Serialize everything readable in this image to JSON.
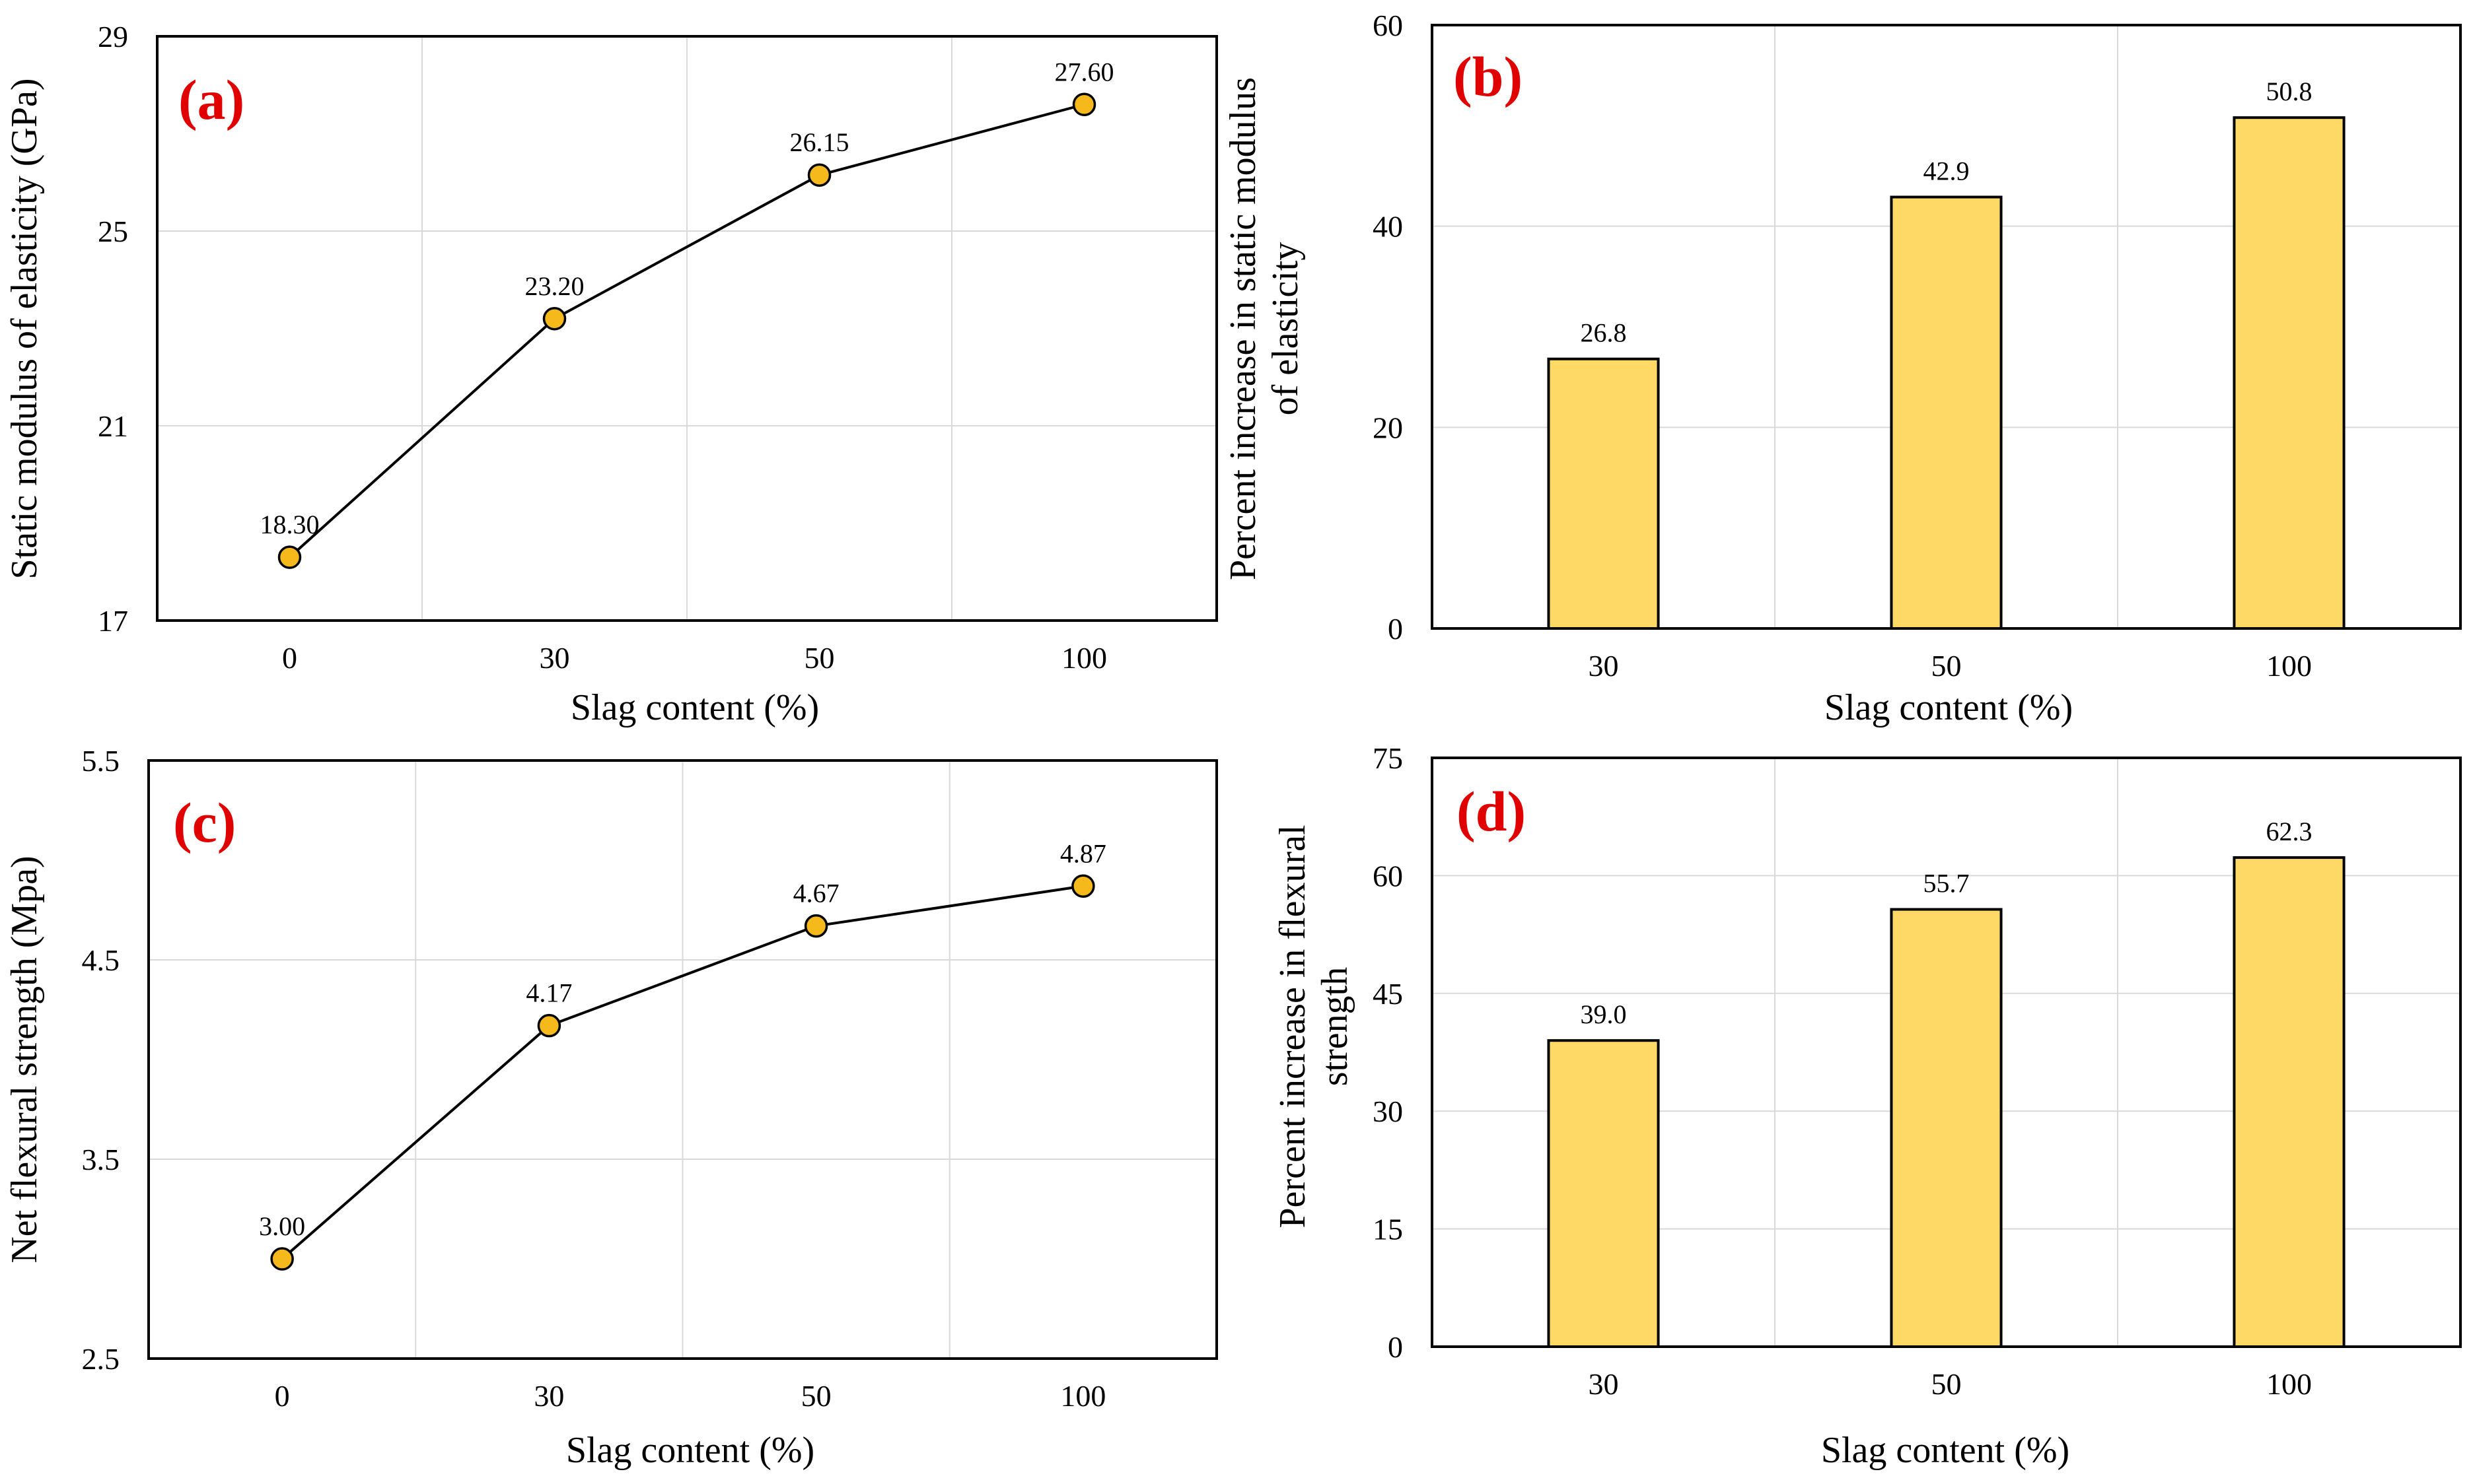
{
  "colors": {
    "marker_fill": "#f6b91c",
    "bar_fill": "#fed966",
    "outline": "#000000",
    "grid": "#d9d9d9",
    "panel_tag": "#e00000"
  },
  "chart_data": [
    {
      "id": "a",
      "type": "line",
      "panel_label": "(a)",
      "categories": [
        "0",
        "30",
        "50",
        "100"
      ],
      "values": [
        18.3,
        23.2,
        26.15,
        27.6
      ],
      "data_labels": [
        "18.30",
        "23.20",
        "26.15",
        "27.60"
      ],
      "xlabel": "Slag content (%)",
      "ylabel": "Static modulus of elasticity (GPa)",
      "ylim": [
        17,
        29
      ],
      "yticks": [
        17,
        21,
        25,
        29
      ],
      "ytick_labels": [
        "17",
        "21",
        "25",
        "29"
      ],
      "grid": true
    },
    {
      "id": "b",
      "type": "bar",
      "panel_label": "(b)",
      "categories": [
        "30",
        "50",
        "100"
      ],
      "values": [
        26.8,
        42.9,
        50.8
      ],
      "data_labels": [
        "26.8",
        "42.9",
        "50.8"
      ],
      "xlabel": "Slag content (%)",
      "ylabel": [
        "Percent increase in static modulus",
        "of elasticity"
      ],
      "ylim": [
        0,
        60
      ],
      "yticks": [
        0,
        20,
        40,
        60
      ],
      "ytick_labels": [
        "0",
        "20",
        "40",
        "60"
      ],
      "grid": true
    },
    {
      "id": "c",
      "type": "line",
      "panel_label": "(c)",
      "categories": [
        "0",
        "30",
        "50",
        "100"
      ],
      "values": [
        3.0,
        4.17,
        4.67,
        4.87
      ],
      "data_labels": [
        "3.00",
        "4.17",
        "4.67",
        "4.87"
      ],
      "xlabel": "Slag content (%)",
      "ylabel": "Net flexural  strength (Mpa)",
      "ylim": [
        2.5,
        5.5
      ],
      "yticks": [
        2.5,
        3.5,
        4.5,
        5.5
      ],
      "ytick_labels": [
        "2.5",
        "3.5",
        "4.5",
        "5.5"
      ],
      "grid": true
    },
    {
      "id": "d",
      "type": "bar",
      "panel_label": "(d)",
      "categories": [
        "30",
        "50",
        "100"
      ],
      "values": [
        39.0,
        55.7,
        62.3
      ],
      "data_labels": [
        "39.0",
        "55.7",
        "62.3"
      ],
      "xlabel": "Slag content (%)",
      "ylabel": [
        "Percent increase in flexural",
        "strength"
      ],
      "ylim": [
        0,
        75
      ],
      "yticks": [
        0,
        15,
        30,
        45,
        60,
        75
      ],
      "ytick_labels": [
        "0",
        "15",
        "30",
        "45",
        "60",
        "75"
      ],
      "grid": true
    }
  ]
}
